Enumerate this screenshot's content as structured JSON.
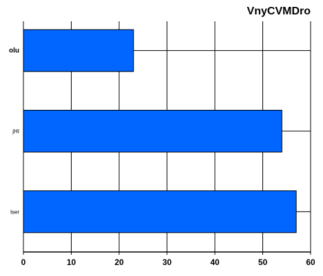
{
  "chart_data": {
    "type": "bar",
    "orientation": "horizontal",
    "title": "VnyCVMDro",
    "xlabel": "",
    "ylabel": "",
    "categories": [
      "olu",
      "jHI",
      "lser"
    ],
    "values": [
      23,
      54,
      57
    ],
    "xlim": [
      0,
      60
    ],
    "x_ticks": [
      0,
      10,
      20,
      30,
      40,
      50,
      60
    ],
    "grid": true,
    "legend": "none",
    "colors": {
      "bar": "#0066ff",
      "bar_edge": "#000000",
      "grid": "#000000",
      "axis": "#000000",
      "background": "#ffffff"
    }
  }
}
